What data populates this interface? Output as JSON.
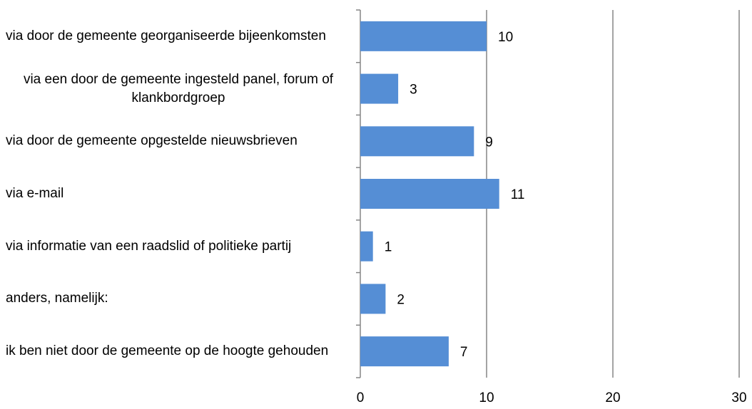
{
  "chart_data": {
    "type": "bar",
    "orientation": "horizontal",
    "categories": [
      "via door de gemeente georganiseerde bijeenkomsten",
      "via een door de gemeente ingesteld panel, forum of klankbordgroep",
      "via door de gemeente opgestelde nieuwsbrieven",
      "via e-mail",
      "via informatie van een raadslid of politieke partij",
      "anders, namelijk:",
      "ik ben niet door de gemeente op de hoogte gehouden"
    ],
    "values": [
      10,
      3,
      9,
      11,
      1,
      2,
      7
    ],
    "color": "#558ed5",
    "xlim": [
      0,
      30
    ],
    "xticks": [
      0,
      10,
      20,
      30
    ],
    "grid": true
  }
}
